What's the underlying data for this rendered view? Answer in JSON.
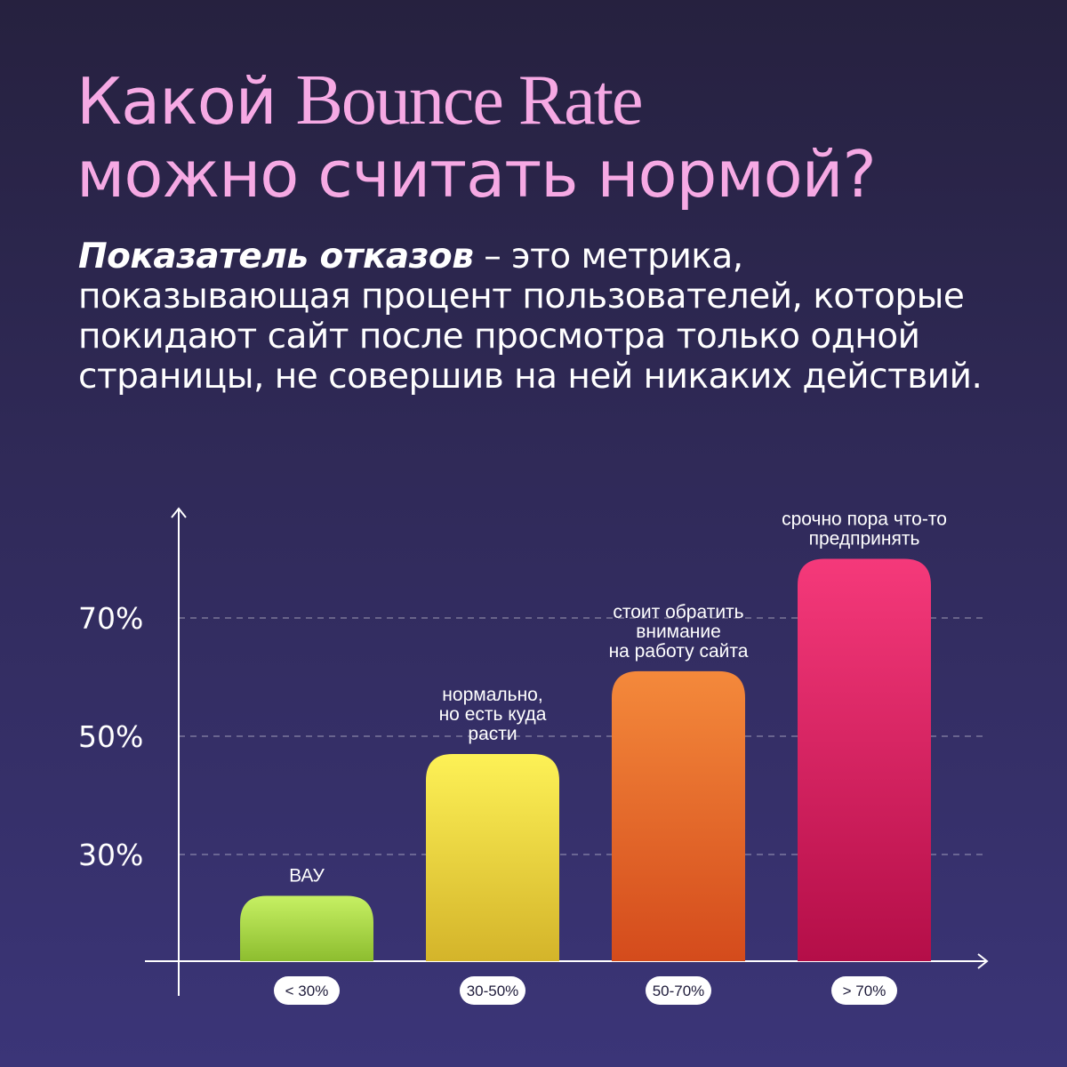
{
  "header": {
    "title_part1": "Какой ",
    "title_serif": "Bounce Rate",
    "title_line2": "можно считать нормой?",
    "desc_term": "Показатель отказов",
    "desc_rest": " – это метрика, показывающая процент пользователей, которые покидают сайт после просмотра только одной страницы, не совершив на ней никаких действий."
  },
  "colors": {
    "title": "#f6a9e4",
    "bar1": [
      "#c6f063",
      "#8dbd2f"
    ],
    "bar2": [
      "#fdf156",
      "#d4b42a"
    ],
    "bar3": [
      "#f4893b",
      "#d44b1c"
    ],
    "bar4": [
      "#f5397a",
      "#b40e48"
    ]
  },
  "chart_data": {
    "type": "bar",
    "categories": [
      "< 30%",
      "30-50%",
      "50-70%",
      "> 70%"
    ],
    "values": [
      23,
      47,
      61,
      80
    ],
    "bar_labels": [
      [
        "ВАУ"
      ],
      [
        "нормально,",
        "но есть куда",
        "расти"
      ],
      [
        "стоит обратить",
        "внимание",
        "на работу сайта"
      ],
      [
        "срочно пора что-то",
        "предпринять"
      ]
    ],
    "y_ticks": [
      30,
      50,
      70
    ],
    "y_tick_labels": [
      "30%",
      "50%",
      "70%"
    ],
    "grid": "dashed at ticks",
    "title": "",
    "xlabel": "",
    "ylabel": ""
  }
}
